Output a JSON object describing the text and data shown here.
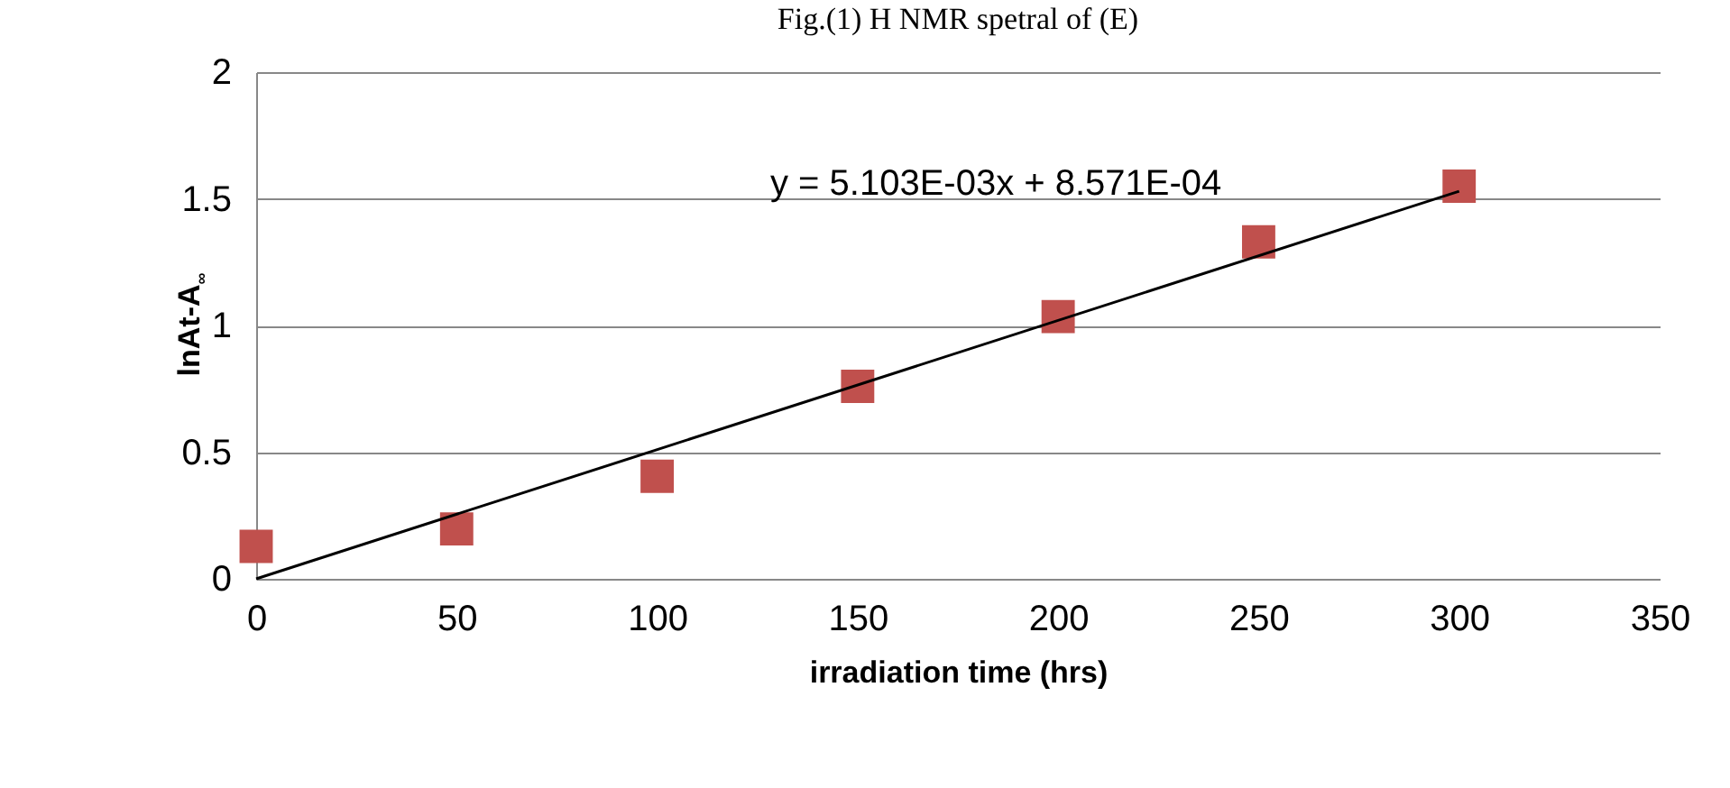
{
  "chart_data": {
    "type": "scatter",
    "title": "Fig.(1) H NMR spetral of (E)",
    "xlabel": "irradiation time (hrs)",
    "ylabel": "lnAt-A$_{∞}$",
    "x": [
      0,
      50,
      100,
      150,
      200,
      250,
      300
    ],
    "series": [
      {
        "color": "#c0504d",
        "values": [
          0.128,
          0.197,
          0.405,
          0.76,
          1.035,
          1.33,
          1.55
        ]
      },
      {
        "type": "line",
        "color": "#000000",
        "marker": "none",
        "x": [
          0,
          300
        ],
        "values": [
          0,
          1.53
        ]
      }
    ],
    "annotations": [
      "y = 5.103E-03x + 8.571E-04"
    ],
    "xlim": [
      0,
      350
    ],
    "xticks": [
      0,
      50,
      100,
      150,
      200,
      250,
      300,
      350
    ],
    "ylim": [
      0,
      2
    ],
    "yticks": [
      0,
      0.5,
      1,
      1.5,
      2
    ],
    "grid": "y",
    "marker": "square",
    "line_style": "solid"
  }
}
